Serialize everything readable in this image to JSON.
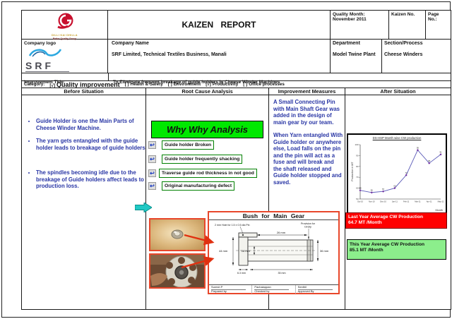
{
  "header": {
    "title": "KAIZEN REPORT",
    "quality_month_label": "Quality Month:",
    "quality_month_value": "November 2011",
    "kaizen_no_label": "Kaizen No.",
    "page_no_label": "Page No.:"
  },
  "company": {
    "logo_label": "Company logo",
    "name_label": "Company Name",
    "name_value": "SRF Limited, Technical Textiles Business, Manali",
    "dept_label": "Department",
    "dept_value": "Model Twine Plant",
    "section_label": "Section/Process",
    "section_value": "Cheese Winders",
    "srf_logo_text": "SRF",
    "quality_logo_line1": "DILLI KAI DHILLA",
    "quality_logo_line2": "Better Quality Group"
  },
  "improvement_title": {
    "label": "Improvement Title:",
    "value": "To Eliminate frequent breakage of guide holders in Cheese Winder Machines"
  },
  "category": {
    "label": "Category:",
    "items": [
      {
        "mark": "[√]",
        "label": "Quality improvement"
      },
      {
        "mark": "[ ]",
        "label": "Health & Safety"
      },
      {
        "mark": "[ ]",
        "label": "Environment"
      },
      {
        "mark": "[√]",
        "label": "Productivity"
      },
      {
        "mark": "[ ]",
        "label": "Office processes"
      }
    ]
  },
  "columns": {
    "before": "Before Situation",
    "root_cause": "Root Cause Analysis",
    "measures": "Improvement Measures",
    "after": "After Situation"
  },
  "before": {
    "bullets": [
      "Guide Holder is one the Main Parts of Cheese Winder Machine.",
      "The yarn gets entangled with the guide holder leads to breakage of guide holders",
      "The spindles becoming idle due to the breakage of Guide holders affect leads to production loss."
    ]
  },
  "root_cause": {
    "title": "Why Why Analysis",
    "causes": [
      "Guide holder Broken",
      "Guide holder frequently shacking",
      "Traverse guide rod thickness in not good",
      "Original manufacturing defect"
    ]
  },
  "measures": {
    "paragraphs": [
      "A Small Connecting Pin with Main Shaft Gear was added in the design of main gear by our team.",
      "When Yarn entangled With Guide holder or anywhere else, Load falls on the pin and the pin will act as a fuse and will break and the shaft released and Guide holder stopped and saved."
    ]
  },
  "drawing": {
    "title": "Bush for Main Gear",
    "note_hole": "2 mm Hole for 1.5 ± 0.5 dia Pin",
    "note_circlip_1": "Provision for",
    "note_circlip_2": "Circlip",
    "dim_top": "26 mm",
    "dim_left": "44 mm",
    "dim_inner": "16 mm",
    "dim_right": "36 mm",
    "dim_bottom_small": "6.3 mm",
    "dim_bottom": "35 mm",
    "prepared_name": "Suresh P",
    "prepared_label": "Prepared by",
    "checked_name": "Pachaiappan",
    "checked_label": "Checked by",
    "approved_name": "Senthil",
    "approved_label": "Approved By"
  },
  "after": {
    "last_year_line1": "Last Year Average CW Production",
    "last_year_line2": "64.7 MT /Month",
    "this_year_line1": "This Year Average CW Production",
    "this_year_line2": "85.1 MT /Month"
  },
  "chart_data": {
    "type": "line",
    "title": "DS-HSP Month wise CW production",
    "categories": [
      "Oct-10",
      "Nov-10",
      "Dec-10",
      "Jan-11",
      "Feb-11",
      "Mar-11",
      "Apr-11",
      "May-11"
    ],
    "values": [
      58,
      56,
      57,
      60,
      72,
      95,
      83,
      91
    ],
    "xlabel": "Month",
    "ylabel": "Production in MT",
    "ylim": [
      50,
      100
    ],
    "ytick": 10,
    "legend": false,
    "grid": false,
    "line_color": "#5b5bb8",
    "marker_color": "#7030a0"
  },
  "icons": {
    "cause_arrow": "↩"
  },
  "colors": {
    "text_blue": "#2936a5",
    "why_green": "#00e800",
    "cause_border_green": "#008000",
    "alert_red": "#ff0000",
    "result_green": "#8cee8c",
    "photo_border": "#e8472b",
    "flow_cyan": "#20c8c4"
  }
}
